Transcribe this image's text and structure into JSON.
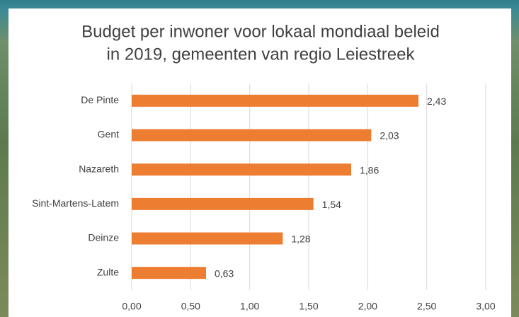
{
  "chart_data": {
    "type": "bar",
    "orientation": "horizontal",
    "title": [
      "Budget per inwoner voor lokaal mondiaal beleid",
      "in 2019, gemeenten van regio Leiestreek"
    ],
    "categories": [
      "De Pinte",
      "Gent",
      "Nazareth",
      "Sint-Martens-Latem",
      "Deinze",
      "Zulte"
    ],
    "values": [
      2.43,
      2.03,
      1.86,
      1.54,
      1.28,
      0.63
    ],
    "value_labels": [
      "2,43",
      "2,03",
      "1,86",
      "1,54",
      "1,28",
      "0,63"
    ],
    "color": "#ed7d31",
    "xlim": [
      0,
      3
    ],
    "xticks": [
      {
        "value": 0,
        "label": "0,00"
      },
      {
        "value": 0.5,
        "label": "0,50"
      },
      {
        "value": 1,
        "label": "1,00"
      },
      {
        "value": 1.5,
        "label": "1,50"
      },
      {
        "value": 2,
        "label": "2,00"
      },
      {
        "value": 2.5,
        "label": "2,50"
      },
      {
        "value": 3,
        "label": "3,00"
      }
    ],
    "grid": true
  }
}
